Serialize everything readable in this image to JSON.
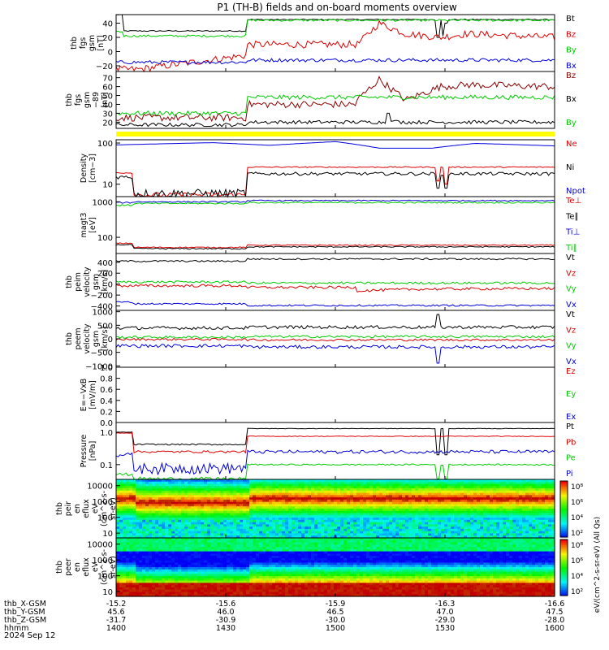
{
  "title": "P1 (TH-B) fields and on-board moments overview",
  "date_label": "2024 Sep 12",
  "orbit_rows": [
    {
      "label": "thb_X-GSM",
      "values": [
        "-15.2",
        "-15.6",
        "-15.9",
        "-16.3",
        "-16.6"
      ]
    },
    {
      "label": "thb_Y-GSM",
      "values": [
        "45.6",
        "46.0",
        "46.5",
        "47.0",
        "47.5"
      ]
    },
    {
      "label": "thb_Z-GSM",
      "values": [
        "-31.7",
        "-30.9",
        "-30.0",
        "-29.0",
        "-28.0"
      ]
    },
    {
      "label": "hhmm",
      "values": [
        "1400",
        "1430",
        "1500",
        "1530",
        "1600"
      ]
    }
  ],
  "colorbar": {
    "label": "eV/(cm^2-s-sr-eV) (All Qs)",
    "upper_ticks": [
      "10^8",
      "10^6",
      "10^4",
      "10^2"
    ],
    "lower_ticks": [
      "10^8",
      "10^6",
      "10^4",
      "10^2"
    ]
  },
  "chart_data": [
    {
      "type": "line",
      "ylabel": [
        "thb",
        "fgs",
        "gsm",
        "[nT]"
      ],
      "ylim": [
        -28,
        52
      ],
      "yscale": "linear",
      "yticks": [
        "40",
        "20",
        "0",
        "−20"
      ],
      "series": [
        {
          "name": "Bt",
          "color": "#000000",
          "segments": [
            [
              0,
              0.015,
              52
            ],
            [
              0.015,
              0.3,
              29
            ],
            [
              0.3,
              1,
              45
            ]
          ],
          "noise": 0.8,
          "dips": [
            [
              0.733,
              20
            ],
            [
              0.748,
              22
            ],
            [
              0.752,
              40
            ]
          ]
        },
        {
          "name": "Bz",
          "color": "#dd0000",
          "segments": [
            [
              0,
              0.05,
              -25
            ],
            [
              0.3,
              -5
            ],
            [
              0.3,
              1,
              10
            ],
            [
              0.55,
              10
            ],
            [
              0.6,
              40
            ],
            [
              0.66,
              25
            ],
            [
              0.74,
              20
            ],
            [
              0.8,
              25
            ],
            [
              1,
              20
            ]
          ],
          "noise": 5,
          "dips": []
        },
        {
          "name": "By",
          "color": "#00cc00",
          "segments": [
            [
              0,
              0.015,
              28
            ],
            [
              0.015,
              0.3,
              22
            ],
            [
              0.3,
              1,
              44
            ]
          ],
          "noise": 1.5,
          "dips": []
        },
        {
          "name": "Bx",
          "color": "#0000dd",
          "segments": [
            [
              0,
              0.3,
              -15
            ],
            [
              0.3,
              1,
              -12
            ]
          ],
          "noise": 2.5,
          "dips": []
        }
      ],
      "legend": [
        {
          "name": "Bt",
          "color": "#000000"
        },
        {
          "name": "Bz",
          "color": "#dd0000"
        },
        {
          "name": "By",
          "color": "#00cc00"
        },
        {
          "name": "Bx",
          "color": "#0000dd"
        }
      ]
    },
    {
      "type": "line",
      "ylabel": [
        "thb",
        "fgs",
        "gsm",
        "−89",
        "[nT]"
      ],
      "ylim": [
        13,
        77
      ],
      "yscale": "linear",
      "yticks": [
        "70",
        "60",
        "50",
        "40",
        "30",
        "20"
      ],
      "series": [
        {
          "name": "Bz",
          "color": "#8b0000",
          "segments": [
            [
              0,
              0.3,
              25
            ],
            [
              0.3,
              1,
              40
            ],
            [
              0.55,
              45
            ],
            [
              0.6,
              68
            ],
            [
              0.66,
              45
            ],
            [
              0.74,
              60
            ],
            [
              0.8,
              62
            ],
            [
              1,
              60
            ]
          ],
          "noise": 4,
          "dips": []
        },
        {
          "name": "Bx",
          "color": "#000000",
          "segments": [
            [
              0,
              0.3,
              17
            ],
            [
              0.3,
              1,
              20
            ]
          ],
          "noise": 2,
          "dips": [
            [
              0.62,
              30
            ],
            [
              0.64,
              22
            ]
          ]
        },
        {
          "name": "By",
          "color": "#00cc00",
          "segments": [
            [
              0,
              0.3,
              30
            ],
            [
              0.3,
              1,
              48
            ],
            [
              1,
              40
            ]
          ],
          "noise": 2.5,
          "dips": []
        }
      ],
      "legend": [
        {
          "name": "Bz",
          "color": "#8b0000"
        },
        {
          "name": "Bx",
          "color": "#000000"
        },
        {
          "name": "By",
          "color": "#00cc00"
        }
      ]
    },
    {
      "type": "line",
      "ylabel": [
        "Density",
        "[cm−3]"
      ],
      "ylim": [
        5,
        120
      ],
      "yscale": "log",
      "yticks": [
        "100",
        "10"
      ],
      "series": [
        {
          "name": "Npot",
          "color": "#0000dd",
          "segments": [
            [
              0,
              90
            ],
            [
              0.22,
              102
            ],
            [
              0.35,
              88
            ],
            [
              0.5,
              108
            ],
            [
              0.6,
              75
            ],
            [
              0.72,
              75
            ],
            [
              0.82,
              98
            ],
            [
              1,
              85
            ]
          ],
          "noise": 0,
          "dips": []
        },
        {
          "name": "Ne",
          "color": "#dd0000",
          "segments": [
            [
              0,
              0.04,
              19
            ],
            [
              0.04,
              0.3,
              5.5
            ],
            [
              0.3,
              1,
              26
            ]
          ],
          "noise": 0.8,
          "dips": [
            [
              0.733,
              12
            ],
            [
              0.752,
              10
            ]
          ]
        },
        {
          "name": "Ni",
          "color": "#000000",
          "segments": [
            [
              0,
              0.04,
              15
            ],
            [
              0.04,
              0.3,
              6
            ],
            [
              0.3,
              1,
              18
            ]
          ],
          "noise": 1.6,
          "dips": [
            [
              0.733,
              8
            ],
            [
              0.752,
              8
            ]
          ]
        }
      ],
      "legend": [
        {
          "name": "Ne",
          "color": "#dd0000"
        },
        {
          "name": "Ni",
          "color": "#000000"
        },
        {
          "name": "Npot",
          "color": "#0000dd"
        }
      ]
    },
    {
      "type": "line",
      "ylabel": [
        "magt3",
        "[eV]"
      ],
      "ylim": [
        35,
        1400
      ],
      "yscale": "log",
      "yticks": [
        "1000",
        "100"
      ],
      "series": [
        {
          "name": "Te⊥",
          "color": "#dd0000",
          "segments": [
            [
              0,
              0.04,
              68
            ],
            [
              0.04,
              0.3,
              52
            ],
            [
              0.3,
              1,
              60
            ]
          ],
          "noise": 2,
          "dips": []
        },
        {
          "name": "Te∥",
          "color": "#000000",
          "segments": [
            [
              0,
              0.04,
              62
            ],
            [
              0.04,
              0.3,
              48
            ],
            [
              0.3,
              1,
              54
            ]
          ],
          "noise": 2,
          "dips": []
        },
        {
          "name": "Ti⊥",
          "color": "#0000dd",
          "segments": [
            [
              0,
              0.04,
              950
            ],
            [
              0.04,
              0.3,
              1000
            ],
            [
              0.3,
              1,
              1080
            ]
          ],
          "noise": 40,
          "dips": []
        },
        {
          "name": "Ti∥",
          "color": "#00cc00",
          "segments": [
            [
              0,
              0.04,
              800
            ],
            [
              0.04,
              0.3,
              900
            ],
            [
              0.3,
              1,
              950
            ]
          ],
          "noise": 40,
          "dips": []
        }
      ],
      "legend": [
        {
          "name": "Te⊥",
          "color": "#dd0000"
        },
        {
          "name": "Te∥",
          "color": "#000000"
        },
        {
          "name": "Ti⊥",
          "color": "#0000dd"
        },
        {
          "name": "Ti∥",
          "color": "#00cc00"
        }
      ]
    },
    {
      "type": "line",
      "ylabel": [
        "thb",
        "peim",
        "velocity",
        "gsm",
        "[km/s]"
      ],
      "ylim": [
        -480,
        560
      ],
      "yscale": "linear",
      "yticks": [
        "400",
        "200",
        "0",
        "−200",
        "−400"
      ],
      "series": [
        {
          "name": "Vt",
          "color": "#000000",
          "segments": [
            [
              0,
              0.04,
              420
            ],
            [
              0.04,
              0.3,
              420
            ],
            [
              0.3,
              1,
              460
            ]
          ],
          "noise": 15,
          "dips": []
        },
        {
          "name": "Vz",
          "color": "#dd0000",
          "segments": [
            [
              0,
              0.3,
              -30
            ],
            [
              0.3,
              1,
              -60
            ],
            [
              0.55,
              -120
            ],
            [
              0.7,
              -90
            ],
            [
              1,
              -80
            ]
          ],
          "noise": 25,
          "dips": []
        },
        {
          "name": "Vy",
          "color": "#00cc00",
          "segments": [
            [
              0,
              0.3,
              40
            ],
            [
              0.3,
              1,
              20
            ]
          ],
          "noise": 20,
          "dips": []
        },
        {
          "name": "Vx",
          "color": "#0000dd",
          "segments": [
            [
              0,
              0.04,
              -330
            ],
            [
              0.04,
              0.3,
              -360
            ],
            [
              0.3,
              1,
              -390
            ]
          ],
          "noise": 15,
          "dips": []
        }
      ],
      "legend": [
        {
          "name": "Vt",
          "color": "#000000"
        },
        {
          "name": "Vz",
          "color": "#dd0000"
        },
        {
          "name": "Vy",
          "color": "#00cc00"
        },
        {
          "name": "Vx",
          "color": "#0000dd"
        }
      ]
    },
    {
      "type": "line",
      "ylabel": [
        "thb",
        "peem",
        "velocity",
        "gsm",
        "[km/s]"
      ],
      "ylim": [
        -1050,
        1050
      ],
      "yscale": "linear",
      "yticks": [
        "1000",
        "500",
        "0",
        "−500",
        "−1000"
      ],
      "series": [
        {
          "name": "Vt",
          "color": "#000000",
          "segments": [
            [
              0,
              0.3,
              400
            ],
            [
              0.3,
              1,
              430
            ]
          ],
          "noise": 60,
          "dips": [
            [
              0.733,
              900
            ]
          ]
        },
        {
          "name": "Vz",
          "color": "#dd0000",
          "segments": [
            [
              0,
              0.3,
              -20
            ],
            [
              0.3,
              1,
              -40
            ]
          ],
          "noise": 40,
          "dips": []
        },
        {
          "name": "Vy",
          "color": "#00cc00",
          "segments": [
            [
              0,
              0.3,
              60
            ],
            [
              0.3,
              1,
              80
            ]
          ],
          "noise": 45,
          "dips": []
        },
        {
          "name": "Vx",
          "color": "#0000dd",
          "segments": [
            [
              0,
              0.3,
              -260
            ],
            [
              0.3,
              1,
              -300
            ]
          ],
          "noise": 60,
          "dips": [
            [
              0.733,
              -900
            ]
          ]
        }
      ],
      "legend": [
        {
          "name": "Vt",
          "color": "#000000"
        },
        {
          "name": "Vz",
          "color": "#dd0000"
        },
        {
          "name": "Vy",
          "color": "#00cc00"
        },
        {
          "name": "Vx",
          "color": "#0000dd"
        }
      ]
    },
    {
      "type": "line",
      "ylabel": [
        "E=−VxB",
        "[mV/m]"
      ],
      "ylim": [
        0,
        1
      ],
      "yscale": "linear",
      "yticks": [
        "1.0",
        "0.8",
        "0.6",
        "0.4",
        "0.2",
        "0.0"
      ],
      "series": [],
      "legend": [
        {
          "name": "Ez",
          "color": "#dd0000"
        },
        {
          "name": "Ey",
          "color": "#00cc00"
        },
        {
          "name": "Ex",
          "color": "#0000dd"
        }
      ]
    },
    {
      "type": "line",
      "ylabel": [
        "Pressure",
        "[nPa]"
      ],
      "ylim": [
        0.035,
        2.0
      ],
      "yscale": "log",
      "yticks": [
        "1.0",
        "0.1"
      ],
      "series": [
        {
          "name": "Pt",
          "color": "#000000",
          "segments": [
            [
              0,
              0.04,
              1.0
            ],
            [
              0.04,
              0.3,
              0.42
            ],
            [
              0.3,
              1,
              1.3
            ]
          ],
          "noise": 0.02,
          "dips": [
            [
              0.733,
              0.2
            ],
            [
              0.752,
              0.2
            ]
          ]
        },
        {
          "name": "Pb",
          "color": "#dd0000",
          "segments": [
            [
              0,
              0.04,
              0.95
            ],
            [
              0.04,
              0.3,
              0.25
            ],
            [
              0.3,
              1,
              0.75
            ]
          ],
          "noise": 0.02,
          "dips": []
        },
        {
          "name": "Pe",
          "color": "#00cc00",
          "segments": [
            [
              0,
              0.04,
              0.05
            ],
            [
              0.04,
              0.3,
              0.036
            ],
            [
              0.3,
              1,
              0.1
            ]
          ],
          "noise": 0.005,
          "dips": [
            [
              0.733,
              0.036
            ],
            [
              0.752,
              0.036
            ]
          ]
        },
        {
          "name": "Pi",
          "color": "#0000dd",
          "segments": [
            [
              0,
              0.04,
              0.2
            ],
            [
              0.04,
              0.3,
              0.08
            ],
            [
              0.3,
              1,
              0.25
            ]
          ],
          "noise": 0.03,
          "dips": []
        }
      ],
      "legend": [
        {
          "name": "Pt",
          "color": "#000000"
        },
        {
          "name": "Pb",
          "color": "#dd0000"
        },
        {
          "name": "Pe",
          "color": "#00cc00"
        },
        {
          "name": "Pi",
          "color": "#0000dd"
        }
      ]
    },
    {
      "type": "heatmap",
      "ylabel": [
        "thb",
        "peir",
        "en",
        "eflux",
        "eV",
        "(cm^2-s-",
        "sr-eV)"
      ],
      "ylim": [
        5,
        25000
      ],
      "yscale": "log",
      "yticks": [
        "10000",
        "1000",
        "100",
        "10"
      ],
      "peak_energy": 1500
    },
    {
      "type": "heatmap",
      "ylabel": [
        "thb",
        "peer",
        "en",
        "eflux",
        "eV",
        "(cm^2-s-",
        "sr-eV)"
      ],
      "ylim": [
        5,
        25000
      ],
      "yscale": "log",
      "yticks": [
        "10000",
        "1000",
        "100",
        "10"
      ],
      "peak_energy": 20
    }
  ]
}
